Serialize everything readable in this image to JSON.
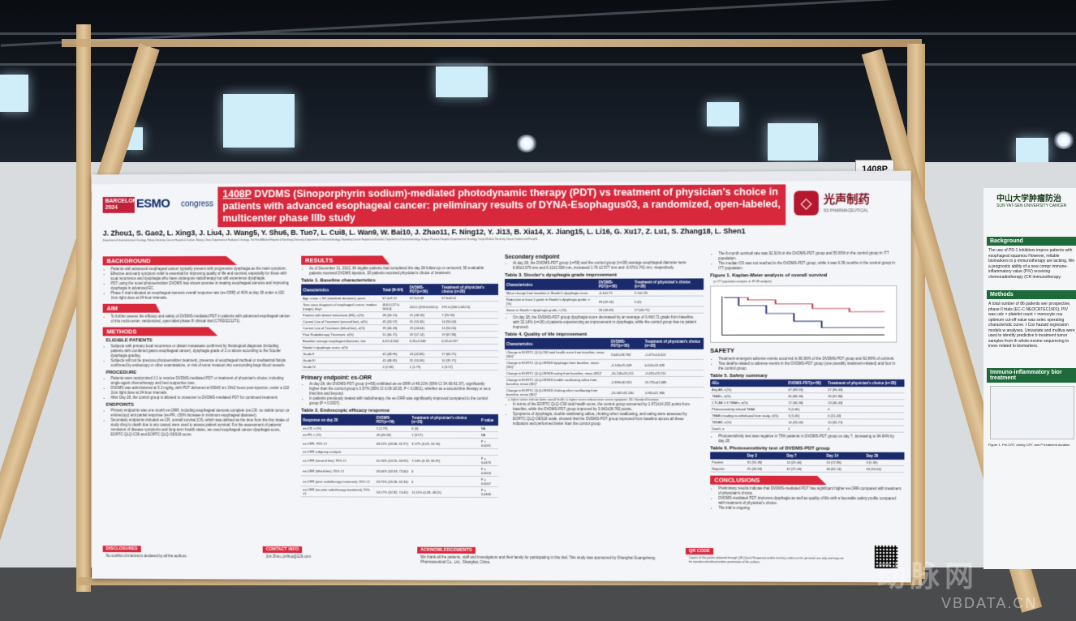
{
  "board": {
    "number": "1408P"
  },
  "poster": {
    "esmo": {
      "city": "BARCELONA 2024",
      "logo": "ESMO",
      "suffix": "congress"
    },
    "title_number": "1408P",
    "title": " DVDMS (Sinoporphyrin sodium)-mediated photodynamic therapy (PDT) vs treatment of physician's choice in patients with advanced esophageal cancer: preliminary results of DYNA-Esophagus03, a randomized, open-labeled, multicenter phase IIIb study",
    "brand": {
      "cn": "光声制药",
      "en": "SS PHARMACEUTICAL"
    },
    "authors": "J. Zhou1, S. Gao2, L. Xing3, J. Liu4, J. Wang5, Y. Shu6, B. Tuo7, L. Cui8, L. Wan9, W. Bai10, J. Zhao11, F. Ning12, Y. Ji13, B. Xia14, X. Jiang15, L. Li16, G. Xu17, Z. Lu1, S. Zhang18, L. Shen1",
    "affiliations": "Department of Gastrointestinal Oncology, Peking University Cancer Hospital & Institute, Beijing, China; Department of Radiation Oncology, The First Affiliated Hospital of Nanchang University; Department of Gastroenterology, Shandong Cancer Hospital and Institute; Department of Gastroenterology, Jiangsu Province Hospital; Department of Oncology, Tianjin Medical University Cancer Institute and Hospital",
    "sections": {
      "background": "BACKGROUND",
      "aim": "AIM",
      "methods": "METHODS",
      "eligible": "ELIGIBLE PATIENTS",
      "procedure": "PROCEDURE",
      "endpoints": "ENDPOINTS",
      "results": "RESULTS",
      "safety": "SAFETY",
      "conclusions": "CONCLUSIONS",
      "disclosures": "DISCLOSURES",
      "contact": "CONTACT INFO",
      "ack": "ACKNOWLEDGEMENTS",
      "qr": "QR CODE"
    },
    "background_items": [
      "Patients with advanced esophageal cancer typically present with progressive dysphagia as the main symptom.",
      "Effective and early symptom relief is essential for improving quality of life and survival, especially for those with local recurrence and dysphagia who have undergone radiotherapy but still experience dysphagia.",
      "PDT using the novel photosensitizer DVDMS has shown promise in treating esophageal stenosis and improving dysphagia in advanced EC.",
      "Phase II trial indicated an esophageal stenosis overall response rate (es-ORR) of 40% at day 28 under a 102 J/cm light dose at 24-hour intervals."
    ],
    "aim_text": "To further assess the efficacy and safety of DVDMS-mediated PDT in patients with advanced esophageal cancer of this multi-center, randomized, open-label phase III clinical trial (CTR20221271).",
    "eligible_items": [
      "Subjects with primary local recurrence or distant metastasis confirmed by histological diagnosis (including patients with combined gastro-esophageal cancer), dysphagia grade of 2 or above according to the Stooler dysphagia grading.",
      "Subjects will not be previous photosensitizer treatment, presence of esophageal tracheal or mediastinal fistula confirmed by endoscopy or other examinations, or risk of tumor invasion into surrounding large blood vessels."
    ],
    "procedure_items": [
      "Patients were randomized 2:1 to receive DVDMS-mediated PDT or treatment of physician's choice, including single-agent chemotherapy and best supportive care.",
      "DVDMS was administered at 0.2 mg/kg, with PDT delivered at 630±5 nm 24±2 hours post-injection, under a 102 J/cm light dose at 24-hour intervals.",
      "After Day 28, the control group is allowed to crossover to DVDMS-mediated PDT for continued treatment."
    ],
    "endpoint_items": [
      "Primary endpoints was one month es-ORR, including esophageal stenosis complete (es-CR, no visible tumor on endoscopy) and partial response (es-PR, ≥50% increase in minimum esophageal diameter).",
      "Secondary endpoints included es-CR, overall survival (OS, which was defined as the time from the first intake of study drug to death due to any cause) were used to assess patient survival. For the assessment of patients' remission of disease symptoms and long-term health status, we used esophageal cancer dysphagia score, EORTC QLQ-C30 and EORTC QLQ-OES18 score."
    ],
    "results_intro": "As of December 31, 2023, 84 eligible patients had completed the day 28 follow-up or censored, 56 evaluable patients received DVDMS injection, 28 patients received physician's choice of treatment.",
    "table1": {
      "title": "Table 1. Baseline characteristics",
      "headers": [
        "Characteristics",
        "Total (N=84)",
        "DVDMS-PDT(n=56)",
        "Treatment of physician's choice (n=28)"
      ],
      "rows": [
        [
          "Age, mean ± SD (standard deviation), years",
          "67.4±9.12",
          "67.3±9.49",
          "67.6±8.52"
        ],
        [
          "Time since diagnosis of esophageal cancer, median (range), days",
          "404.0 (27.0-563.0)",
          "422.0 (258.0-563.0)",
          "379.0 (260.5-662.0)"
        ],
        [
          "Patients with distant metastasis (M1), n(%)",
          "28 (34.15)",
          "21 (38.18)",
          "7 (25.93)"
        ],
        [
          "Current Line of Treatment (second line), n(%)",
          "45 (53.57)",
          "31 (55.36)",
          "14 (50.00)"
        ],
        [
          "Current Line of Treatment (≥third line), n(%)",
          "39 (46.43)",
          "25 (44.64)",
          "14 (50.00)"
        ],
        [
          "Prior Radiotherapy Treatment, n(%)",
          "51 (60.71)",
          "32 (57.14)",
          "19 (67.86)"
        ],
        [
          "Baseline average esophageal diameter, mm",
          "6.47±3.360",
          "6.25±3.538",
          "6.92±3.097"
        ],
        [
          "Stooler's dysphagia score, n(%)",
          "",
          "",
          ""
        ],
        [
          "Grade II",
          "41 (48.81)",
          "24 (42.86)",
          "17 (60.71)"
        ],
        [
          "Grade III",
          "41 (48.81)",
          "31 (55.36)",
          "10 (35.71)"
        ],
        [
          "Grade IV",
          "2 (2.38)",
          "1 (1.79)",
          "1 (3.57)"
        ]
      ]
    },
    "primary": {
      "title": "Primary endpoint: es-ORR",
      "items": [
        "At day 28, the DVDMS-PDT group (n=56) exhibited an es-ORR of 48.21% (95% CI 34.66-61.97), significantly higher than the control group's 3.57% (95% CI 0.09-18.35, P < 0.0001), whether as a second-line therapy or as a third line and beyond.",
        "In patients previously treated with radiotherapy, the es-ORR was significantly improved compared to the control group (P = 0.0007)."
      ]
    },
    "table2": {
      "title": "Table 2. Endoscopic efficacy response",
      "headers": [
        "Response on day 28",
        "DVDMS-PDT(n=56)",
        "Treatment of physician's choice (n=28)",
        "P value"
      ],
      "rows": [
        [
          "es-CR, n (%)",
          "1 (1.79)",
          "0 (0)",
          "NA"
        ],
        [
          "es-PR, n (%)",
          "26 (46.43)",
          "1 (3.57)",
          "NA"
        ],
        [
          "es-ORR, 95% CI",
          "48.21% (34.66, 61.97)",
          "3.57% (0.09, 18.35)",
          "P < 0.0001"
        ],
        [
          "es-ORR subgroup analysis",
          "",
          "",
          ""
        ],
        [
          "es-ORR (second line), 95% CI",
          "41.94% (24.55, 60.92)",
          "7.14% (0.18, 33.87)",
          "P = 0.0470"
        ],
        [
          "es-ORR (≥third line), 95% CI",
          "56.00% (34.93, 75.60)",
          "0",
          "P = 0.0004"
        ],
        [
          "es-ORR (prior radiotherapy treatment), 95% CI",
          "43.75% (26.36, 62.34)",
          "0",
          "P = 0.0007"
        ],
        [
          "es-ORR (no prior radiotherapy treatment), 95% CI",
          "54.17% (32.82, 74.45)",
          "11.11% (0.28, 48.25)",
          "P = 0.0466"
        ]
      ]
    },
    "secondary": {
      "title": "Secondary endpoint",
      "text": "At day 28, the DVDMS-PDT group (n=56) and the control group (n=28) average esophageal diameter were 8.06±3.079 mm and 6.12±2.928 mm, increased 1.76 ±2.577 mm and -0.67±1.741 mm, respectively."
    },
    "table3": {
      "title": "Table 3. Stooler's dysphagia grade improvement",
      "headers": [
        "Characteristics",
        "DVDMS-PDT(n=56)",
        "Treatment of physician's choice (n=28)"
      ],
      "rows": [
        [
          "Mean change from baseline in Stooler's dysphagia score",
          "-0.4±0.71",
          "0.1±0.33"
        ],
        [
          "Reduction at least 1 grade in Stooler's dysphagia grade, n (%)",
          "18 (32.14)",
          "0 (0)"
        ],
        [
          "Stasis in Stooler's dysphagia grade, n (%)",
          "26 (46.43)",
          "17 (60.71)"
        ]
      ]
    },
    "dysphagia_text": "On day 28, the DVDMS-PDT group dysphagia score decreased by an average of 0.4±0.71 grade from baseline, with 32.14% (n=18) of patients experiencing an improvement in dysphagia, while the control group has no patient improved.",
    "table4": {
      "title": "Table 4. Quality of life improvement",
      "headers": [
        "Characteristics",
        "DVDMS-PDT(n=56)",
        "Treatment of physician's choice (n=28)"
      ],
      "rows": [
        [
          "Change in EORTC QLQ-C30 total health score from baseline, mean (SD)*",
          "3.642±28.782",
          "-1.471±14.202"
        ],
        [
          "Change in EORTC QLQ-OES18 dysphagia from baseline, mean (SD)*",
          "-3.140±25.409",
          "0.000±13.628"
        ],
        [
          "Change in EORTC QLQ-OES18 eating from baseline, mean (SD)*",
          "-10.145±26.211",
          "-3.431±23.210"
        ],
        [
          "Change in EORTC QLQ-OES18 trouble swallowing saliva from baseline, mean (SD)*",
          "-2.899±30.951",
          "13.725±42.088"
        ],
        [
          "Change in EORTC QLQ-OES18 choking when swallowing from baseline, mean (SD)*",
          "-15.667±31.230",
          "1.961±21.966"
        ]
      ],
      "note": "a, higher values indicate better overall health. b, higher scores indicate more severe symptoms. SD, Standard Deviation."
    },
    "qol_items": [
      "In terms of the EORTC QLQ-C30 total health score, the control group worsened by 1.471±14.202 points from baseline, while the DVDMS-PDT group improved by 3.642±28.782 points.",
      "Symptoms of dysphagia, trouble swallowing saliva, choking when swallowing, and eating were assessed by EORTC QLQ-OES18 scale, showed that the DVDMS-PDT group improved from baseline across all these indicators and performed better than the control group."
    ],
    "os_text": "The 6-month survival rate was 92.91% in the DVDMS-PDT group and 55.65% in the control group in ITT population.",
    "os_text2": "The median OS was not reached in the DVDMS-PDT group, while it was 6.36 months in the control group in ITT population.",
    "fig1_title": "Figure 1. Kaplan-Meier analysis of overall survival",
    "fig1_sub": "(a: ITT population analysis; b: IPCW analysis)",
    "safety_items": [
      "Treatment-emergent adverse events occurred in 80.36% of the DVDMS-PDT group and 92.86% of controls.",
      "Two deaths related to adverse events in the DVDMS-PDT group (one possibly treatment-related) and four in the control group."
    ],
    "table5": {
      "title": "Table 5. Safety summary",
      "headers": [
        "AEs",
        "DVDMS-PDT(n=56)",
        "Treatment of physician's choice (n=28)"
      ],
      "rows": [
        [
          "Any AE, n(%)",
          "47 (83.93)",
          "27 (96.43)"
        ],
        [
          "TEAEs, n(%)",
          "45 (80.36)",
          "26 (92.86)"
        ],
        [
          "CTCAE ≥ 3 TEAEs, n(%)",
          "17 (30.36)",
          "13 (46.43)"
        ],
        [
          "Photosensitivity related TEAE",
          "3 (5.36)",
          "0"
        ],
        [
          "TEAEs leading to withdrawal from study, n(%)",
          "3 (5.36)",
          "6 (21.43)"
        ],
        [
          "TESAE, n(%)",
          "14 (25.00)",
          "10 (35.71)"
        ],
        [
          "Death, n",
          "2",
          "4"
        ]
      ]
    },
    "photo_text": "Photosensitivity test was negative in 75% patients in DVDMS-PDT group on day 7, increasing to 94.64% by day 28.",
    "table6": {
      "title": "Table 6. Photosensitivity test of DVDMS-PDT group",
      "headers": [
        "",
        "Day 3",
        "Day 7",
        "Day 14",
        "Day 28"
      ],
      "rows": [
        [
          "Positive",
          "31 (55.36)",
          "14 (25.00)",
          "10 (17.86)",
          "3 (5.36)"
        ],
        [
          "Negative",
          "25 (44.64)",
          "42 (75.00)",
          "46 (82.14)",
          "53 (94.64)"
        ]
      ]
    },
    "conclusions_items": [
      "Preliminary results indicate that DVDMS-mediated PDT has significant higher es-ORR compared with treatment of physician's choice.",
      "DVDMS-mediated PDT improves dysphagia as well as quality of life with a favorable safety profile compared with treatment of physician's choice.",
      "The trial is ongoing."
    ],
    "disclosures_text": "No conflict of interest is declared by all the authors.",
    "contact_text": "Jun Zhou, jzzhou@126.com",
    "ack_text": "We thank all the patients, staff and investigators and their family for participating in this trial. This study was sponsored by Shanghai Guangsheng Pharmaceutical Co., Ltd., Shanghai, China.",
    "qr_text": "Copies of this poster obtained through QR (Quick Response) and/or text key codes are for personal use only and may not be reproduced without written permission of the authors."
  },
  "right_poster": {
    "cn": "中山大学肿瘤防治",
    "en": "SUN YAT-SEN UNIVERSITY CANCER",
    "background": "Background",
    "bg_text": "The use of PD-1 inhibitors improv patients with esophageal squamou However, reliable biomarkers to p immunotherapy are lacking. We a prognostic ability of a new compr immune-inflammatory value (PIV) receiving chemoradiotherapy (CR immunotherapy.",
    "methods": "Methods",
    "m_text": "A total number of 86 patients wer prospective, phase II trials (EC-C NEOCRTEC1901). PIV was calc × platelet count × monocyte cou optimum cut-off value was selec operating characteristic curve. I Cox hazard regression models w analyses. Univariate and multiva were used to identify predictive b treatment tumor samples from th whole-exome sequencing to inves related to biomarkers.",
    "immune": "Immuno-inflammatory bior treatment",
    "fig_caption": "Figure 1. Pre-CRT, during CRT, and P treatment duration"
  },
  "watermark": {
    "cn": "动脉网",
    "en": "VBDATA.CN"
  }
}
